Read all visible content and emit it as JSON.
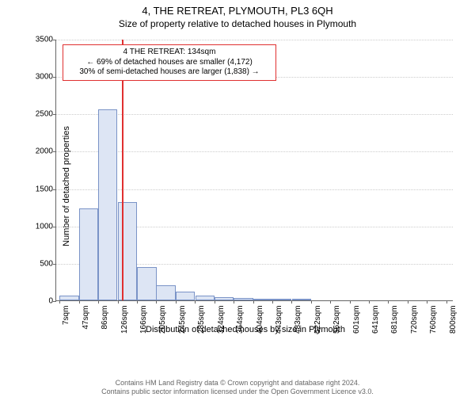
{
  "title": "4, THE RETREAT, PLYMOUTH, PL3 6QH",
  "subtitle": "Size of property relative to detached houses in Plymouth",
  "chart": {
    "type": "histogram",
    "ylabel": "Number of detached properties",
    "xlabel": "Distribution of detached houses by size in Plymouth",
    "ylim": [
      0,
      3500
    ],
    "ytick_step": 500,
    "xlim": [
      0,
      815
    ],
    "xtick_start": 7,
    "xtick_step": 39.65,
    "xtick_suffix": "sqm",
    "bar_fill": "#dde5f4",
    "bar_stroke": "#7a93c7",
    "grid_color": "#cccccc",
    "axis_color": "#666666",
    "background": "#ffffff",
    "marker_value": 134,
    "marker_color": "#e03030",
    "bin_width": 39.65,
    "bars": [
      {
        "x_start": 7,
        "count": 60
      },
      {
        "x_start": 47,
        "count": 1230
      },
      {
        "x_start": 86,
        "count": 2560
      },
      {
        "x_start": 126,
        "count": 1320
      },
      {
        "x_start": 166,
        "count": 450
      },
      {
        "x_start": 205,
        "count": 200
      },
      {
        "x_start": 245,
        "count": 120
      },
      {
        "x_start": 285,
        "count": 60
      },
      {
        "x_start": 324,
        "count": 40
      },
      {
        "x_start": 364,
        "count": 30
      },
      {
        "x_start": 404,
        "count": 25
      },
      {
        "x_start": 443,
        "count": 20
      },
      {
        "x_start": 483,
        "count": 20
      }
    ],
    "xtick_labels": [
      "7sqm",
      "47sqm",
      "86sqm",
      "126sqm",
      "166sqm",
      "205sqm",
      "245sqm",
      "285sqm",
      "324sqm",
      "364sqm",
      "404sqm",
      "443sqm",
      "483sqm",
      "522sqm",
      "562sqm",
      "601sqm",
      "641sqm",
      "681sqm",
      "720sqm",
      "760sqm",
      "800sqm"
    ]
  },
  "annotation": {
    "line1": "4 THE RETREAT: 134sqm",
    "line2": "← 69% of detached houses are smaller (4,172)",
    "line3": "30% of semi-detached houses are larger (1,838) →"
  },
  "footer": {
    "line1": "Contains HM Land Registry data © Crown copyright and database right 2024.",
    "line2": "Contains public sector information licensed under the Open Government Licence v3.0."
  }
}
